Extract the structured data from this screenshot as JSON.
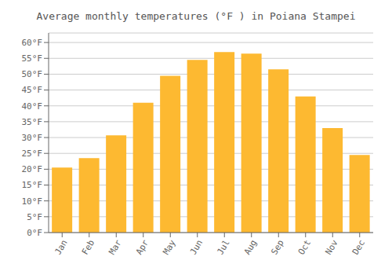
{
  "chart_data": {
    "type": "bar",
    "title": "Average monthly temperatures (°F ) in Poiana Stampei",
    "categories": [
      "Jan",
      "Feb",
      "Mar",
      "Apr",
      "May",
      "Jun",
      "Jul",
      "Aug",
      "Sep",
      "Oct",
      "Nov",
      "Dec"
    ],
    "values": [
      20.5,
      23.5,
      30.7,
      41.0,
      49.5,
      54.5,
      57.0,
      56.5,
      51.5,
      43.0,
      33.0,
      24.5
    ],
    "color": "#FDB931",
    "ylim": [
      0,
      63
    ],
    "yticks": [
      {
        "value": 0,
        "label": "0°F"
      },
      {
        "value": 5,
        "label": "5°F"
      },
      {
        "value": 10,
        "label": "10°F"
      },
      {
        "value": 15,
        "label": "15°F"
      },
      {
        "value": 20,
        "label": "20°F"
      },
      {
        "value": 25,
        "label": "25°F"
      },
      {
        "value": 30,
        "label": "30°F"
      },
      {
        "value": 35,
        "label": "35°F"
      },
      {
        "value": 40,
        "label": "40°F"
      },
      {
        "value": 45,
        "label": "45°F"
      },
      {
        "value": 50,
        "label": "50°F"
      },
      {
        "value": 55,
        "label": "55°F"
      },
      {
        "value": 60,
        "label": "60°F"
      }
    ],
    "grid": true
  }
}
